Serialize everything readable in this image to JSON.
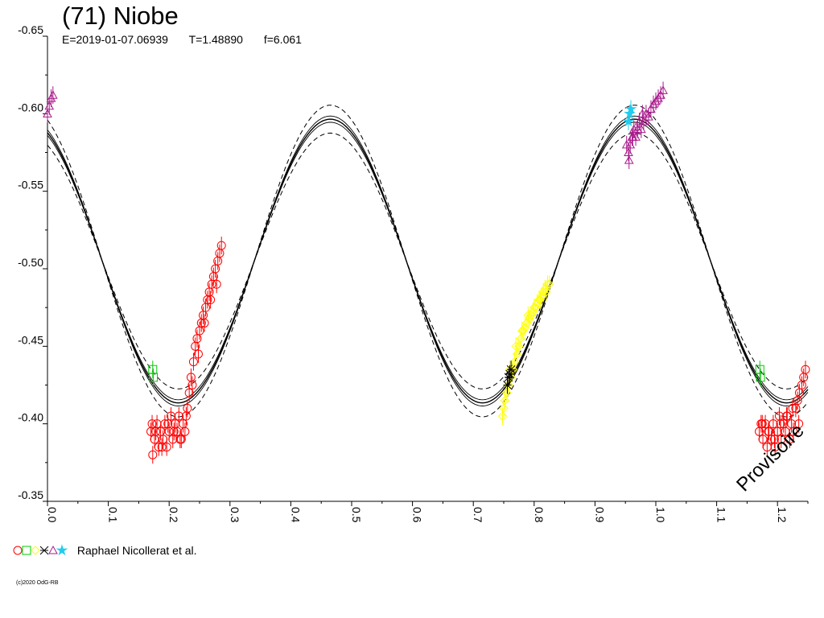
{
  "title": "(71) Niobe",
  "subtitle": {
    "epoch": "E=2019-01-07.06939",
    "period": "T=1.48890",
    "f": "f=6.061"
  },
  "watermark": "Provisoire",
  "legend": {
    "label": "Raphael Nicollerat et al.",
    "symbols": [
      {
        "shape": "circle",
        "color": "#ff0000"
      },
      {
        "shape": "square",
        "color": "#00cc00"
      },
      {
        "shape": "diamond",
        "color": "#ffff00"
      },
      {
        "shape": "cross",
        "color": "#000000"
      },
      {
        "shape": "triangle",
        "color": "#aa1a8c"
      },
      {
        "shape": "star",
        "color": "#22ccee"
      }
    ]
  },
  "copyright": "(c)2020 OdG-RB",
  "chart_data": {
    "type": "scatter",
    "title": "(71) Niobe",
    "xlim": [
      0.0,
      1.25
    ],
    "ylim": [
      -0.65,
      -0.35
    ],
    "y_inverted": true,
    "x_ticks": [
      "0.0",
      "0.1",
      "0.2",
      "0.3",
      "0.4",
      "0.5",
      "0.6",
      "0.7",
      "0.8",
      "0.9",
      "1.0",
      "1.1",
      "1.2"
    ],
    "x_tick_values": [
      0.0,
      0.1,
      0.2,
      0.3,
      0.4,
      0.5,
      0.6,
      0.7,
      0.8,
      0.9,
      1.0,
      1.1,
      1.2
    ],
    "y_ticks": [
      "-0.65",
      "-0.60",
      "-0.55",
      "-0.50",
      "-0.45",
      "-0.40",
      "-0.35"
    ],
    "y_tick_values": [
      -0.65,
      -0.6,
      -0.55,
      -0.5,
      -0.45,
      -0.4,
      -0.35
    ],
    "grid": false,
    "fit": {
      "mean": -0.505,
      "amplitude": 0.0915,
      "peak_phases": [
        0.465,
        0.965
      ],
      "band_inner": 0.002,
      "band_outer": 0.009
    },
    "series": [
      {
        "color": "#ff0000",
        "marker": "circle",
        "x": [
          0.17,
          0.173,
          0.176,
          0.18,
          0.183,
          0.186,
          0.19,
          0.193,
          0.196,
          0.2,
          0.203,
          0.206,
          0.21,
          0.213,
          0.216,
          0.22,
          0.223,
          0.226,
          0.23,
          0.233,
          0.236,
          0.24,
          0.243,
          0.246,
          0.25,
          0.253,
          0.256,
          0.26,
          0.263,
          0.266,
          0.27,
          0.273,
          0.276,
          0.28,
          0.283,
          0.286,
          0.172,
          0.178,
          0.188,
          0.198,
          0.208,
          0.218,
          0.228,
          0.238,
          0.248,
          0.258,
          0.268,
          0.278
        ],
        "y": [
          -0.395,
          -0.38,
          -0.39,
          -0.4,
          -0.385,
          -0.395,
          -0.39,
          -0.4,
          -0.385,
          -0.395,
          -0.405,
          -0.39,
          -0.4,
          -0.395,
          -0.405,
          -0.39,
          -0.4,
          -0.395,
          -0.41,
          -0.42,
          -0.43,
          -0.44,
          -0.45,
          -0.455,
          -0.46,
          -0.465,
          -0.47,
          -0.475,
          -0.48,
          -0.485,
          -0.49,
          -0.495,
          -0.5,
          -0.505,
          -0.51,
          -0.515,
          -0.4,
          -0.395,
          -0.385,
          -0.4,
          -0.395,
          -0.39,
          -0.405,
          -0.425,
          -0.445,
          -0.465,
          -0.48,
          -0.49
        ]
      },
      {
        "color": "#ff0000",
        "marker": "circle",
        "x": [
          1.17,
          1.173,
          1.176,
          1.18,
          1.183,
          1.186,
          1.19,
          1.193,
          1.196,
          1.2,
          1.203,
          1.206,
          1.21,
          1.213,
          1.216,
          1.22,
          1.223,
          1.226,
          1.23,
          1.233,
          1.236,
          1.24,
          1.243,
          1.246,
          1.175,
          1.185,
          1.195,
          1.205,
          1.215,
          1.225,
          1.235
        ],
        "y": [
          -0.395,
          -0.4,
          -0.39,
          -0.4,
          -0.385,
          -0.395,
          -0.39,
          -0.4,
          -0.385,
          -0.395,
          -0.405,
          -0.39,
          -0.4,
          -0.395,
          -0.405,
          -0.39,
          -0.4,
          -0.395,
          -0.41,
          -0.415,
          -0.42,
          -0.425,
          -0.43,
          -0.435,
          -0.4,
          -0.395,
          -0.39,
          -0.4,
          -0.405,
          -0.41,
          -0.4
        ]
      },
      {
        "color": "#00cc00",
        "marker": "square",
        "x": [
          0.173,
          0.174,
          1.171,
          1.172
        ],
        "y": [
          -0.435,
          -0.43,
          -0.435,
          -0.43
        ]
      },
      {
        "color": "#ffff00",
        "marker": "diamond",
        "x": [
          0.748,
          0.75,
          0.752,
          0.755,
          0.758,
          0.762,
          0.765,
          0.768,
          0.772,
          0.775,
          0.778,
          0.782,
          0.785,
          0.788,
          0.792,
          0.795,
          0.798,
          0.802,
          0.805,
          0.808,
          0.812,
          0.815,
          0.818,
          0.822,
          0.825,
          0.76,
          0.77,
          0.78,
          0.79,
          0.8,
          0.81,
          0.82
        ],
        "y": [
          -0.405,
          -0.41,
          -0.415,
          -0.42,
          -0.425,
          -0.43,
          -0.435,
          -0.44,
          -0.445,
          -0.45,
          -0.455,
          -0.46,
          -0.462,
          -0.465,
          -0.468,
          -0.47,
          -0.472,
          -0.475,
          -0.478,
          -0.48,
          -0.482,
          -0.485,
          -0.487,
          -0.49,
          -0.49,
          -0.435,
          -0.45,
          -0.46,
          -0.47,
          -0.475,
          -0.48,
          -0.485
        ]
      },
      {
        "color": "#000000",
        "marker": "cross",
        "x": [
          0.756,
          0.758,
          0.76,
          0.762
        ],
        "y": [
          -0.425,
          -0.43,
          -0.432,
          -0.435
        ]
      },
      {
        "color": "#aa1a8c",
        "marker": "triangle",
        "x": [
          0.0,
          0.003,
          0.006,
          0.009,
          0.955,
          0.958,
          0.961,
          0.964,
          0.967,
          0.97,
          0.973,
          0.976,
          0.98,
          0.984,
          0.988,
          0.992,
          0.996,
          1.0,
          1.004,
          1.008,
          1.012,
          0.952,
          0.956,
          0.962,
          0.97,
          0.978
        ],
        "y": [
          -0.6,
          -0.605,
          -0.61,
          -0.612,
          -0.575,
          -0.58,
          -0.585,
          -0.59,
          -0.585,
          -0.59,
          -0.595,
          -0.59,
          -0.595,
          -0.6,
          -0.598,
          -0.603,
          -0.606,
          -0.608,
          -0.61,
          -0.612,
          -0.615,
          -0.58,
          -0.57,
          -0.585,
          -0.59,
          -0.6
        ]
      },
      {
        "color": "#22ccee",
        "marker": "star",
        "x": [
          0.955,
          0.957,
          0.959
        ],
        "y": [
          -0.595,
          -0.6,
          -0.603
        ]
      }
    ]
  }
}
